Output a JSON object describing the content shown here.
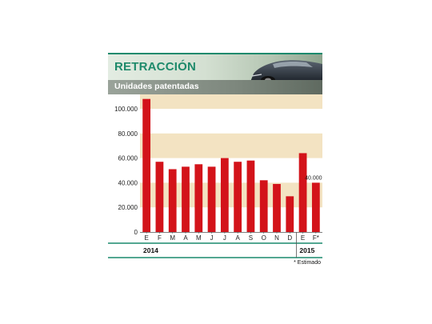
{
  "header": {
    "title": "RETRACCIÓN",
    "subtitle": "Unidades patentadas"
  },
  "chart_data": {
    "type": "bar",
    "categories": [
      "E",
      "F",
      "M",
      "A",
      "M",
      "J",
      "J",
      "A",
      "S",
      "O",
      "N",
      "D",
      "E",
      "F*"
    ],
    "values": [
      108000,
      57000,
      51000,
      53000,
      55000,
      53000,
      60000,
      57000,
      58000,
      42000,
      39000,
      29000,
      64000,
      40000
    ],
    "data_labels": [
      null,
      null,
      null,
      null,
      null,
      null,
      null,
      null,
      null,
      null,
      null,
      null,
      null,
      "40.000"
    ],
    "y_ticks": [
      0,
      20000,
      40000,
      60000,
      80000,
      100000
    ],
    "y_tick_labels": [
      "0",
      "20.000",
      "40.000",
      "60.000",
      "80.000",
      "100.000"
    ],
    "ylim": [
      0,
      100000
    ],
    "years": [
      {
        "label": "2014",
        "start": 0,
        "end": 11
      },
      {
        "label": "2015",
        "start": 12,
        "end": 13
      }
    ],
    "footnote": "* Estimado",
    "bar_color": "#d3131a",
    "band_color": "#f3e3c2",
    "title": "RETRACCIÓN",
    "xlabel": "",
    "ylabel": ""
  }
}
